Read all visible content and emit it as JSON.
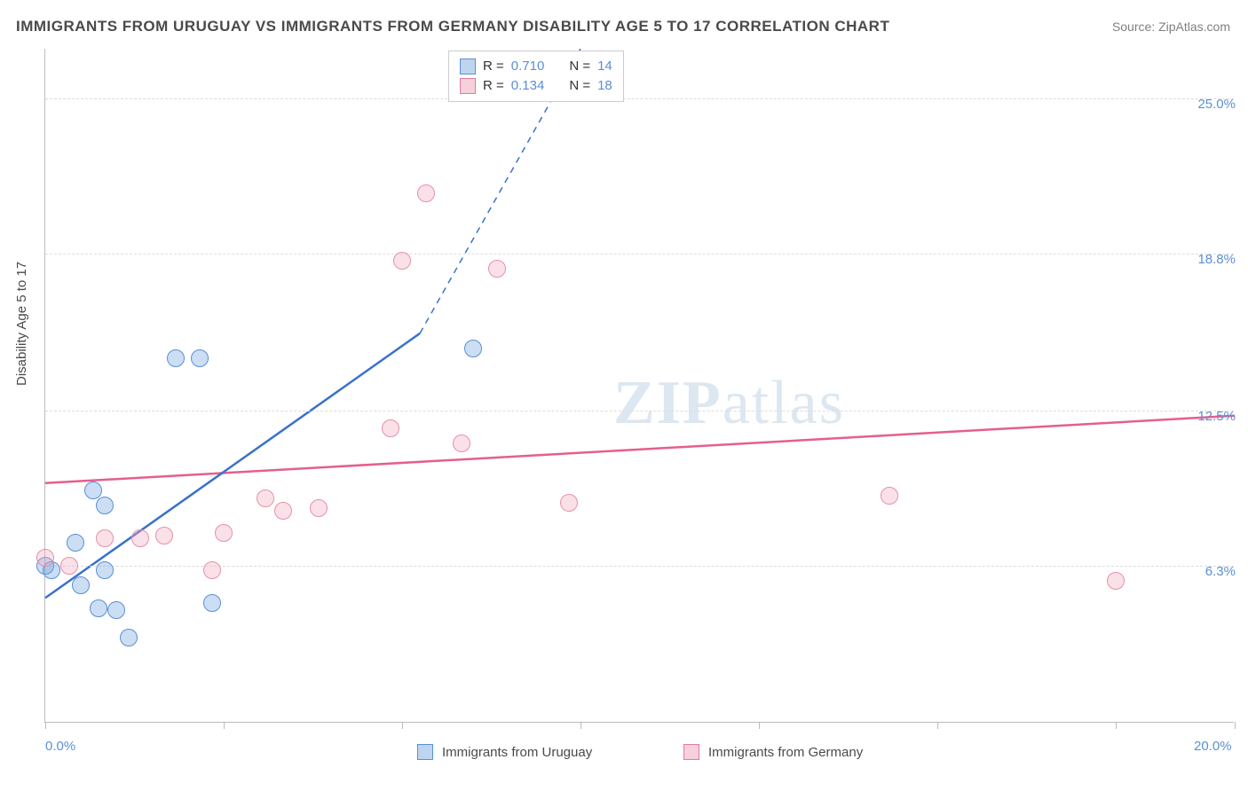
{
  "title": "IMMIGRANTS FROM URUGUAY VS IMMIGRANTS FROM GERMANY DISABILITY AGE 5 TO 17 CORRELATION CHART",
  "source": "Source: ZipAtlas.com",
  "watermark_zip": "ZIP",
  "watermark_atlas": "atlas",
  "y_axis_title": "Disability Age 5 to 17",
  "chart": {
    "type": "scatter",
    "xlim": [
      0,
      20
    ],
    "ylim": [
      0,
      27
    ],
    "x_ticks": [
      0,
      3,
      6,
      9,
      12,
      15,
      18,
      20
    ],
    "x_labels": [
      {
        "v": 0,
        "t": "0.0%"
      },
      {
        "v": 20,
        "t": "20.0%"
      }
    ],
    "y_labels": [
      {
        "v": 6.3,
        "t": "6.3%"
      },
      {
        "v": 12.5,
        "t": "12.5%"
      },
      {
        "v": 18.8,
        "t": "18.8%"
      },
      {
        "v": 25.0,
        "t": "25.0%"
      }
    ],
    "grid_y": [
      6.3,
      12.5,
      18.8,
      25.0
    ],
    "background_color": "#ffffff",
    "grid_color": "#dddddd",
    "marker_radius": 10,
    "series": [
      {
        "name": "Immigrants from Uruguay",
        "color_fill": "rgba(110,160,220,0.35)",
        "color_stroke": "#5a8fd6",
        "points": [
          {
            "x": 0.0,
            "y": 6.3
          },
          {
            "x": 0.1,
            "y": 6.1
          },
          {
            "x": 0.5,
            "y": 7.2
          },
          {
            "x": 0.6,
            "y": 5.5
          },
          {
            "x": 0.8,
            "y": 9.3
          },
          {
            "x": 0.9,
            "y": 4.6
          },
          {
            "x": 1.0,
            "y": 6.1
          },
          {
            "x": 1.0,
            "y": 8.7
          },
          {
            "x": 1.2,
            "y": 4.5
          },
          {
            "x": 1.4,
            "y": 3.4
          },
          {
            "x": 2.2,
            "y": 14.6
          },
          {
            "x": 2.6,
            "y": 14.6
          },
          {
            "x": 2.8,
            "y": 4.8
          },
          {
            "x": 7.2,
            "y": 15.0
          }
        ],
        "trend": {
          "x1": 0,
          "y1": 5.0,
          "x2": 6.3,
          "y2": 15.6,
          "dash_x2": 9.0,
          "dash_y2": 27.0,
          "stroke": "#3a72c9",
          "width": 2.5
        }
      },
      {
        "name": "Immigrants from Germany",
        "color_fill": "rgba(240,170,190,0.35)",
        "color_stroke": "#e690aa",
        "points": [
          {
            "x": 0.0,
            "y": 6.6
          },
          {
            "x": 0.4,
            "y": 6.3
          },
          {
            "x": 1.0,
            "y": 7.4
          },
          {
            "x": 1.6,
            "y": 7.4
          },
          {
            "x": 2.0,
            "y": 7.5
          },
          {
            "x": 2.8,
            "y": 6.1
          },
          {
            "x": 3.0,
            "y": 7.6
          },
          {
            "x": 3.7,
            "y": 9.0
          },
          {
            "x": 4.0,
            "y": 8.5
          },
          {
            "x": 4.6,
            "y": 8.6
          },
          {
            "x": 5.8,
            "y": 11.8
          },
          {
            "x": 6.0,
            "y": 18.5
          },
          {
            "x": 6.4,
            "y": 21.2
          },
          {
            "x": 7.0,
            "y": 11.2
          },
          {
            "x": 7.6,
            "y": 18.2
          },
          {
            "x": 8.8,
            "y": 8.8
          },
          {
            "x": 14.2,
            "y": 9.1
          },
          {
            "x": 18.0,
            "y": 5.7
          }
        ],
        "trend": {
          "x1": 0,
          "y1": 9.6,
          "x2": 20,
          "y2": 12.3,
          "stroke": "#e55f8c",
          "width": 2.5
        }
      }
    ]
  },
  "legend_top": {
    "rows": [
      {
        "swatch": "blue",
        "r_label": "R =",
        "r_value": "0.710",
        "n_label": "N =",
        "n_value": "14"
      },
      {
        "swatch": "pink",
        "r_label": "R =",
        "r_value": "0.134",
        "n_label": "N =",
        "n_value": "18"
      }
    ]
  },
  "legend_bottom": [
    {
      "swatch": "blue",
      "label": "Immigrants from Uruguay"
    },
    {
      "swatch": "pink",
      "label": "Immigrants from Germany"
    }
  ]
}
